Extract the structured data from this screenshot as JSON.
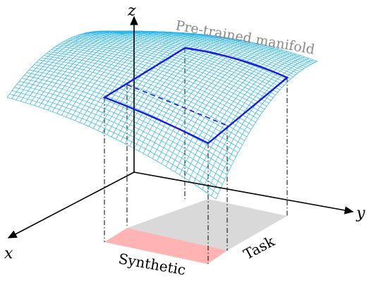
{
  "axes": {
    "x": "x",
    "y": "y",
    "z": "z"
  },
  "manifold_label": "Pre-trained manifold",
  "regions": [
    {
      "name": "synthetic",
      "label": "Synthetic",
      "color": "#ffb3b3"
    },
    {
      "name": "task",
      "label": "Task",
      "color": "#d9d9d9"
    }
  ],
  "colors": {
    "mesh": "#29b5e6",
    "outline": "#1a1adb",
    "axes": "#000000"
  }
}
